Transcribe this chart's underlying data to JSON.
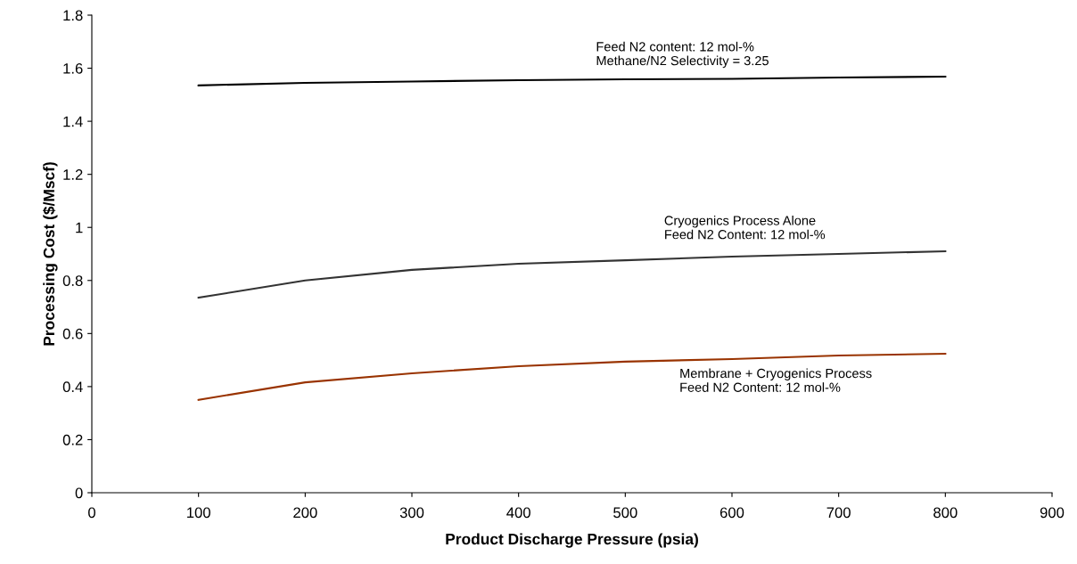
{
  "chart_data": {
    "type": "line",
    "xlabel": "Product Discharge Pressure (psia)",
    "ylabel": "Processing Cost ($/Mscf)",
    "x": [
      100,
      200,
      300,
      400,
      500,
      600,
      700,
      800
    ],
    "series": [
      {
        "color": "#000000",
        "values": [
          1.535,
          1.545,
          1.55,
          1.555,
          1.558,
          1.56,
          1.565,
          1.568
        ]
      },
      {
        "color": "#333333",
        "values": [
          0.735,
          0.8,
          0.84,
          0.863,
          0.876,
          0.89,
          0.9,
          0.91
        ]
      },
      {
        "color": "#993300",
        "values": [
          0.35,
          0.416,
          0.45,
          0.477,
          0.494,
          0.504,
          0.517,
          0.524
        ]
      }
    ],
    "annotations": [
      "Feed N2 content: 12 mol-%\nMethane/N2 Selectivity = 3.25",
      "Cryogenics Process Alone\nFeed N2 Content: 12 mol-%",
      "Membrane + Cryogenics Process\nFeed N2 Content: 12 mol-%"
    ],
    "xlim": [
      0,
      900
    ],
    "xticks": [
      0,
      100,
      200,
      300,
      400,
      500,
      600,
      700,
      800,
      900
    ],
    "ylim": [
      0,
      1.8
    ],
    "yticks": [
      0,
      0.2,
      0.4,
      0.6,
      0.8,
      1,
      1.2,
      1.4,
      1.6,
      1.8
    ],
    "grid": false,
    "legend": false,
    "marker": "none",
    "line_style": "solid"
  }
}
